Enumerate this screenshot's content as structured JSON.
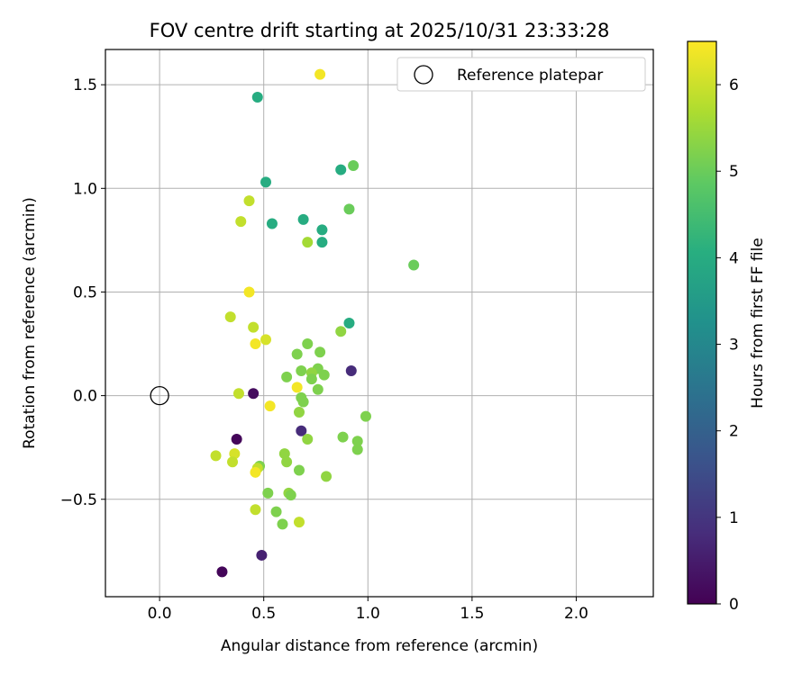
{
  "chart_data": {
    "type": "scatter",
    "title": "FOV centre drift starting at 2025/10/31 23:33:28",
    "xlabel": "Angular distance from reference (arcmin)",
    "ylabel": "Rotation from reference (arcmin)",
    "xlim": [
      -0.26,
      2.37
    ],
    "ylim": [
      -0.97,
      1.67
    ],
    "xticks": [
      0.0,
      0.5,
      1.0,
      1.5,
      2.0
    ],
    "yticks": [
      -0.5,
      0.0,
      0.5,
      1.0,
      1.5
    ],
    "xtick_labels": [
      "0.0",
      "0.5",
      "1.0",
      "1.5",
      "2.0"
    ],
    "ytick_labels": [
      "−0.5",
      "0.0",
      "0.5",
      "1.0",
      "1.5"
    ],
    "grid": true,
    "legend": {
      "position": "upper-right",
      "label": "Reference platepar"
    },
    "reference_point": {
      "x": 0.0,
      "y": 0.0
    },
    "colorbar": {
      "label": "Hours from first FF file",
      "range": [
        0,
        6.5
      ],
      "ticks": [
        0,
        1,
        2,
        3,
        4,
        5,
        6
      ],
      "tick_labels": [
        "0",
        "1",
        "2",
        "3",
        "4",
        "5",
        "6"
      ],
      "colormap": "viridis"
    },
    "points": [
      {
        "x": 0.77,
        "y": 1.55,
        "hours": 6.4
      },
      {
        "x": 0.47,
        "y": 1.44,
        "hours": 4.0
      },
      {
        "x": 0.93,
        "y": 1.11,
        "hours": 5.0
      },
      {
        "x": 0.87,
        "y": 1.09,
        "hours": 4.0
      },
      {
        "x": 0.51,
        "y": 1.03,
        "hours": 4.0
      },
      {
        "x": 0.43,
        "y": 0.94,
        "hours": 5.9
      },
      {
        "x": 0.91,
        "y": 0.9,
        "hours": 5.0
      },
      {
        "x": 0.39,
        "y": 0.84,
        "hours": 5.9
      },
      {
        "x": 0.54,
        "y": 0.83,
        "hours": 4.0
      },
      {
        "x": 0.69,
        "y": 0.85,
        "hours": 4.0
      },
      {
        "x": 0.78,
        "y": 0.8,
        "hours": 4.0
      },
      {
        "x": 0.78,
        "y": 0.74,
        "hours": 4.0
      },
      {
        "x": 0.71,
        "y": 0.74,
        "hours": 5.6
      },
      {
        "x": 1.22,
        "y": 0.63,
        "hours": 5.0
      },
      {
        "x": 0.43,
        "y": 0.5,
        "hours": 6.4
      },
      {
        "x": 0.34,
        "y": 0.38,
        "hours": 5.9
      },
      {
        "x": 0.91,
        "y": 0.35,
        "hours": 4.0
      },
      {
        "x": 0.45,
        "y": 0.33,
        "hours": 5.9
      },
      {
        "x": 0.87,
        "y": 0.31,
        "hours": 5.4
      },
      {
        "x": 0.51,
        "y": 0.27,
        "hours": 6.1
      },
      {
        "x": 0.46,
        "y": 0.25,
        "hours": 6.4
      },
      {
        "x": 0.71,
        "y": 0.25,
        "hours": 5.2
      },
      {
        "x": 0.66,
        "y": 0.2,
        "hours": 5.2
      },
      {
        "x": 0.77,
        "y": 0.21,
        "hours": 5.2
      },
      {
        "x": 0.76,
        "y": 0.13,
        "hours": 5.2
      },
      {
        "x": 0.68,
        "y": 0.12,
        "hours": 5.2
      },
      {
        "x": 0.73,
        "y": 0.11,
        "hours": 5.4
      },
      {
        "x": 0.79,
        "y": 0.1,
        "hours": 5.2
      },
      {
        "x": 0.61,
        "y": 0.09,
        "hours": 5.2
      },
      {
        "x": 0.92,
        "y": 0.12,
        "hours": 0.8
      },
      {
        "x": 0.73,
        "y": 0.08,
        "hours": 5.2
      },
      {
        "x": 0.38,
        "y": 0.01,
        "hours": 5.9
      },
      {
        "x": 0.45,
        "y": 0.01,
        "hours": 0.2
      },
      {
        "x": 0.66,
        "y": 0.04,
        "hours": 6.4
      },
      {
        "x": 0.76,
        "y": 0.03,
        "hours": 5.2
      },
      {
        "x": 0.68,
        "y": -0.01,
        "hours": 5.2
      },
      {
        "x": 0.69,
        "y": -0.03,
        "hours": 5.2
      },
      {
        "x": 0.53,
        "y": -0.05,
        "hours": 6.4
      },
      {
        "x": 0.67,
        "y": -0.08,
        "hours": 5.4
      },
      {
        "x": 0.99,
        "y": -0.1,
        "hours": 5.2
      },
      {
        "x": 0.68,
        "y": -0.17,
        "hours": 0.8
      },
      {
        "x": 0.88,
        "y": -0.2,
        "hours": 5.2
      },
      {
        "x": 0.37,
        "y": -0.21,
        "hours": 0.1
      },
      {
        "x": 0.71,
        "y": -0.21,
        "hours": 5.4
      },
      {
        "x": 0.95,
        "y": -0.22,
        "hours": 5.2
      },
      {
        "x": 0.95,
        "y": -0.26,
        "hours": 5.2
      },
      {
        "x": 0.36,
        "y": -0.28,
        "hours": 6.1
      },
      {
        "x": 0.6,
        "y": -0.28,
        "hours": 5.4
      },
      {
        "x": 0.27,
        "y": -0.29,
        "hours": 5.9
      },
      {
        "x": 0.35,
        "y": -0.32,
        "hours": 5.9
      },
      {
        "x": 0.61,
        "y": -0.32,
        "hours": 5.4
      },
      {
        "x": 0.48,
        "y": -0.34,
        "hours": 5.2
      },
      {
        "x": 0.47,
        "y": -0.35,
        "hours": 5.9
      },
      {
        "x": 0.46,
        "y": -0.37,
        "hours": 6.4
      },
      {
        "x": 0.67,
        "y": -0.36,
        "hours": 5.2
      },
      {
        "x": 0.8,
        "y": -0.39,
        "hours": 5.4
      },
      {
        "x": 0.52,
        "y": -0.47,
        "hours": 5.2
      },
      {
        "x": 0.62,
        "y": -0.47,
        "hours": 5.4
      },
      {
        "x": 0.63,
        "y": -0.48,
        "hours": 5.2
      },
      {
        "x": 0.46,
        "y": -0.55,
        "hours": 5.9
      },
      {
        "x": 0.56,
        "y": -0.56,
        "hours": 5.2
      },
      {
        "x": 0.59,
        "y": -0.62,
        "hours": 5.2
      },
      {
        "x": 0.67,
        "y": -0.61,
        "hours": 5.9
      },
      {
        "x": 0.49,
        "y": -0.77,
        "hours": 0.6
      },
      {
        "x": 0.3,
        "y": -0.85,
        "hours": 0.1
      }
    ]
  }
}
